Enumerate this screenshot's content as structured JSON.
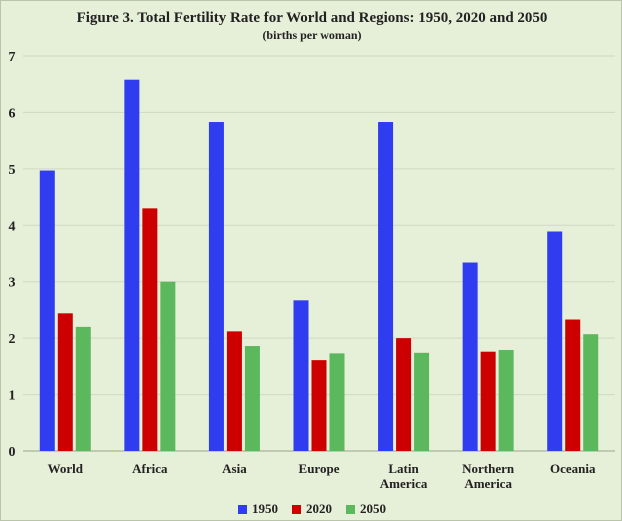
{
  "chart_data": {
    "type": "bar",
    "title": "Figure 3. Total Fertility Rate for World and Regions: 1950, 2020 and 2050",
    "subtitle": "(births per woman)",
    "xlabel": "",
    "ylabel": "",
    "ylim": [
      0,
      7
    ],
    "yticks": [
      0,
      1,
      2,
      3,
      4,
      5,
      6,
      7
    ],
    "grid": true,
    "legend_position": "bottom",
    "categories": [
      [
        "World"
      ],
      [
        "Africa"
      ],
      [
        "Asia"
      ],
      [
        "Europe"
      ],
      [
        "Latin",
        "America"
      ],
      [
        "Northern",
        "America"
      ],
      [
        "Oceania"
      ]
    ],
    "series": [
      {
        "name": "1950",
        "color": "#2f3cf0",
        "values": [
          4.97,
          6.58,
          5.83,
          2.67,
          5.83,
          3.34,
          3.89
        ]
      },
      {
        "name": "2020",
        "color": "#cc0000",
        "values": [
          2.44,
          4.3,
          2.12,
          1.61,
          2.0,
          1.76,
          2.33
        ]
      },
      {
        "name": "2050",
        "color": "#5cb85c",
        "values": [
          2.2,
          3.0,
          1.86,
          1.73,
          1.74,
          1.79,
          2.07
        ]
      }
    ]
  }
}
